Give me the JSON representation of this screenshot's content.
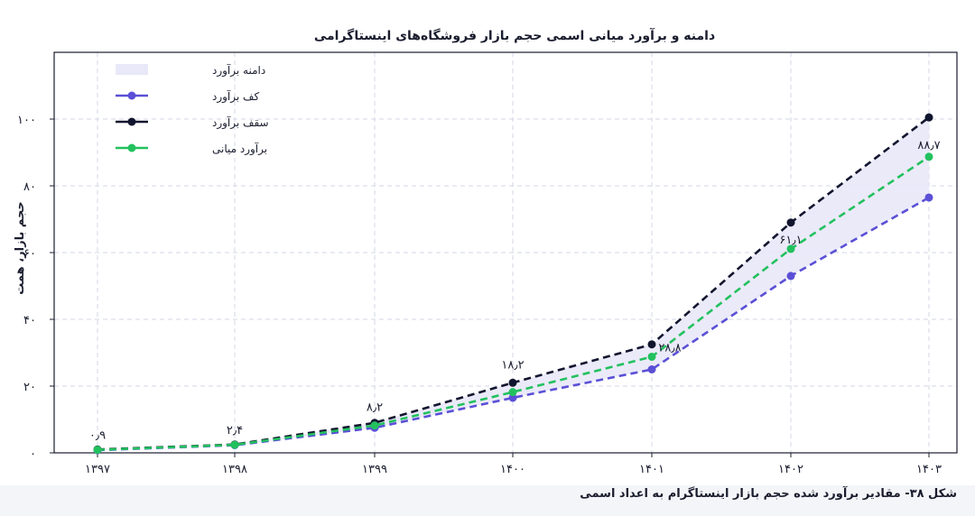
{
  "caption": "شکل ۳۸- مقادیر برآورد شده حجم بازار اینستاگرام به اعداد اسمی",
  "chart_data": {
    "type": "line",
    "title": "دامنه و برآورد میانی اسمی حجم بازار فروشگاه‌های اینستاگرامی",
    "ylabel": "حجم بازار، همت",
    "xlabel": "",
    "categories": [
      "۱۳۹۷",
      "۱۳۹۸",
      "۱۳۹۹",
      "۱۴۰۰",
      "۱۴۰۱",
      "۱۴۰۲",
      "۱۴۰۳"
    ],
    "yticks": [
      0,
      20,
      40,
      60,
      80,
      100
    ],
    "ytick_labels": [
      "۰",
      "۲۰",
      "۴۰",
      "۶۰",
      "۸۰",
      "۱۰۰"
    ],
    "ylim": [
      0,
      120
    ],
    "grid": true,
    "legend_position": "top-left",
    "range_label": "دامنه برآورد",
    "range_color": "#e9e8f8",
    "series": [
      {
        "name": "کف برآورد",
        "color": "#5b50d6",
        "values": [
          0.8,
          2.3,
          7.5,
          16.5,
          25.0,
          53.0,
          76.5
        ]
      },
      {
        "name": "سقف برآورد",
        "color": "#12152e",
        "values": [
          1.0,
          2.5,
          9.0,
          21.0,
          32.5,
          69.0,
          100.5
        ]
      },
      {
        "name": "برآورد میانی",
        "color": "#22c15e",
        "values": [
          0.9,
          2.4,
          8.2,
          18.2,
          28.8,
          61.1,
          88.7
        ]
      }
    ],
    "data_labels": [
      "۰٫۹",
      "۲٫۴",
      "۸٫۲",
      "۱۸٫۲",
      "۲۸٫۸",
      "۶۱٫۱",
      "۸۸٫۷"
    ]
  }
}
